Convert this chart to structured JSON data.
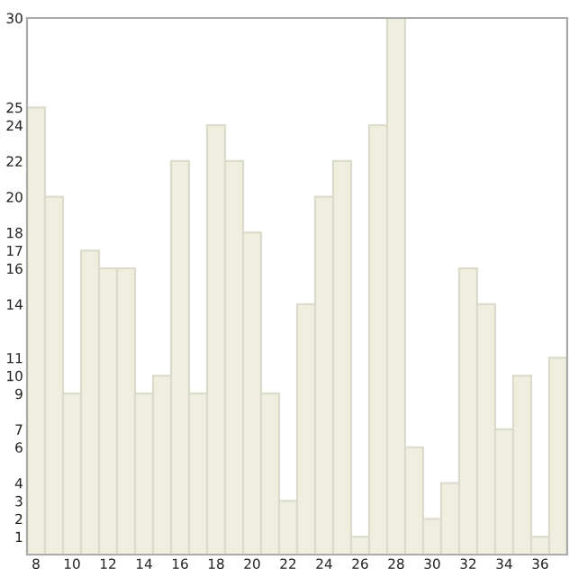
{
  "chart_data": {
    "type": "bar",
    "x": [
      8,
      9,
      10,
      11,
      12,
      13,
      14,
      15,
      16,
      17,
      18,
      19,
      20,
      21,
      22,
      23,
      24,
      25,
      26,
      27,
      28,
      29,
      30,
      31,
      32,
      33,
      34,
      35,
      36,
      37
    ],
    "values": [
      25,
      20,
      9,
      17,
      16,
      16,
      9,
      10,
      22,
      9,
      24,
      22,
      18,
      9,
      3,
      14,
      20,
      22,
      1,
      24,
      30,
      6,
      2,
      4,
      16,
      14,
      7,
      10,
      1,
      11
    ],
    "color": "#efefdf",
    "xlim": [
      7.5,
      37.5
    ],
    "xticks": [
      8,
      10,
      12,
      14,
      16,
      18,
      20,
      22,
      24,
      26,
      28,
      30,
      32,
      34,
      36
    ],
    "ylim": [
      0,
      30
    ],
    "yticks": [
      1,
      2,
      3,
      4,
      6,
      7,
      9,
      10,
      11,
      14,
      16,
      17,
      18,
      20,
      22,
      24,
      25,
      30
    ],
    "grid": false
  }
}
